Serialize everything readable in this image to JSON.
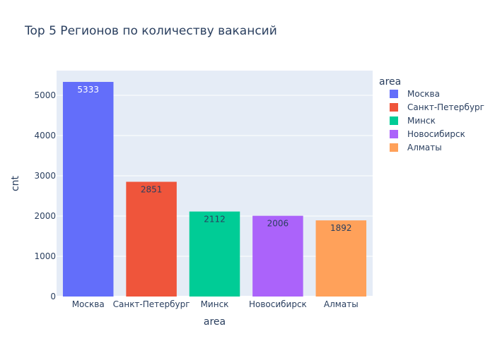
{
  "chart_data": {
    "type": "bar",
    "title": "Top 5 Регионов по количеству вакансий",
    "xlabel": "area",
    "ylabel": "cnt",
    "categories": [
      "Москва",
      "Санкт-Петербург",
      "Минск",
      "Новосибирск",
      "Алматы"
    ],
    "values": [
      5333,
      2851,
      2112,
      2006,
      1892
    ],
    "ylim": [
      0,
      5614
    ],
    "yticks": [
      0,
      1000,
      2000,
      3000,
      4000,
      5000
    ],
    "grid": true,
    "legend": {
      "title": "area",
      "placement": "right"
    },
    "colors": [
      "#636efa",
      "#ef553b",
      "#00cc96",
      "#ab63fa",
      "#ffa15a"
    ],
    "label_colors": [
      "#ffffff",
      "#2a3f5f",
      "#2a3f5f",
      "#2a3f5f",
      "#2a3f5f"
    ],
    "background": "#e5ecf6",
    "gridline_color": "#ffffff",
    "text_color": "#2a3f5f"
  }
}
